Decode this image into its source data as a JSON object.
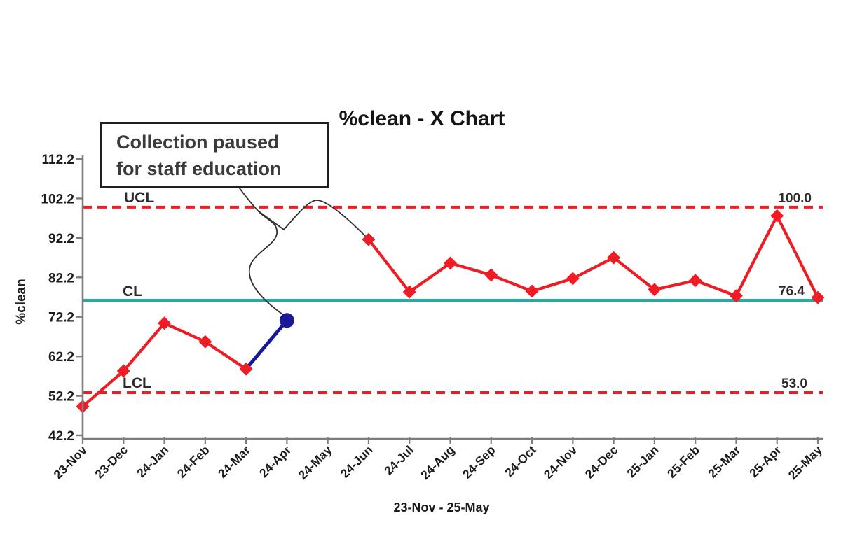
{
  "title": "%clean - X Chart",
  "annotation": {
    "lines": [
      "Collection paused",
      "for staff education"
    ],
    "full_text": "Collection paused for staff education"
  },
  "chart_data": {
    "type": "line",
    "title": "%clean - X Chart",
    "ylabel": "%clean",
    "xlabel": "23-Nov - 25-May",
    "categories": [
      "23-Nov",
      "23-Dec",
      "24-Jan",
      "24-Feb",
      "24-Mar",
      "24-Apr",
      "24-May",
      "24-Jun",
      "24-Jul",
      "24-Aug",
      "24-Sep",
      "24-Oct",
      "24-Nov",
      "24-Dec",
      "25-Jan",
      "25-Feb",
      "25-Mar",
      "25-Apr",
      "25-May"
    ],
    "series": [
      {
        "name": "%clean",
        "values": [
          49.5,
          58.5,
          70.6,
          65.9,
          59.0,
          71.3,
          null,
          91.8,
          78.5,
          85.8,
          82.8,
          78.7,
          81.9,
          87.2,
          79.1,
          81.4,
          77.5,
          97.8,
          77.1
        ]
      }
    ],
    "special_point": {
      "index": 5,
      "category": "24-Apr",
      "marker": "circle",
      "note": "Collection paused for staff education"
    },
    "gap_category": "24-May",
    "control_limits": {
      "ucl": {
        "label": "UCL",
        "value": 100.0,
        "display": "100.0"
      },
      "cl": {
        "label": "CL",
        "value": 76.4,
        "display": "76.4"
      },
      "lcl": {
        "label": "LCL",
        "value": 53.0,
        "display": "53.0"
      }
    },
    "y_ticks": [
      112.2,
      102.2,
      92.2,
      82.2,
      72.2,
      62.2,
      52.2,
      42.2
    ],
    "ylim": [
      42.2,
      112.2
    ],
    "grid": false,
    "legend": false
  },
  "colors": {
    "series_line": "#ee1c25",
    "limit_line": "#ee1c25",
    "center_line": "#1dacaa",
    "special_point": "#191996",
    "leader_line": "#303030",
    "axis": "#7d7d7d",
    "tick_text": "#1c1c1c",
    "limit_text": "#2b2b2b"
  }
}
